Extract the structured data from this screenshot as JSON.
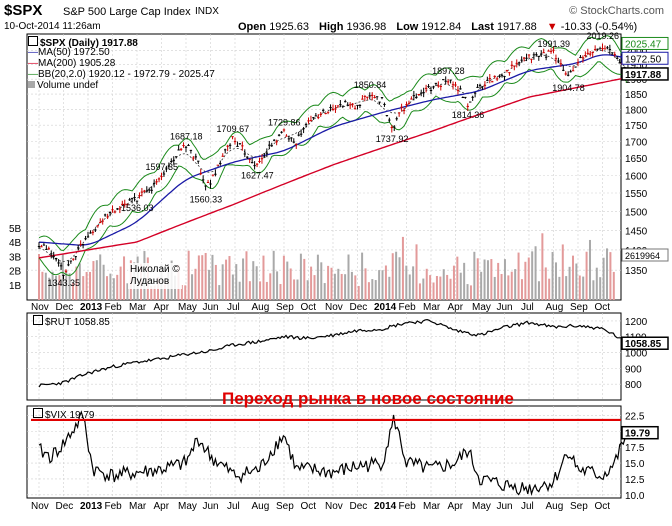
{
  "header": {
    "symbol": "$SPX",
    "description": "S&P 500 Large Cap Index",
    "exchange": "INDX",
    "copyright": "© StockCharts.com",
    "datetime": "10-Oct-2014 11:26am",
    "open_label": "Open",
    "open_value": "1925.63",
    "high_label": "High",
    "high_value": "1936.98",
    "low_label": "Low",
    "low_value": "1912.84",
    "last_label": "Last",
    "last_value": "1917.88",
    "change": "-10.33 (-0.54%)",
    "change_arrow": "▼"
  },
  "legend": {
    "price": "$SPX (Daily) 1917.88",
    "ma50": "MA(50) 1972.50",
    "ma200": "MA(200) 1905.28",
    "bb": "BB(20,2.0) 1920.12 - 1972.79 - 2025.47",
    "volume": "Volume undef",
    "rut": "$RUT 1058.85",
    "vix": "$VIX 19.79"
  },
  "credit": {
    "line1": "Николай ©",
    "line2": "Луданов"
  },
  "annotation": {
    "text": "Переход рынка в новое состояние"
  },
  "colors": {
    "price_up": "#000000",
    "price_down": "#cc0000",
    "ma50": "#1a1aa6",
    "ma200": "#d40026",
    "bb": "#1b8a1b",
    "volume_up": "#a9a9a9",
    "volume_down": "#e39a9a",
    "grid": "#d0d0d0",
    "annotation": "#e00000"
  },
  "chart_data": [
    {
      "type": "line",
      "name": "price",
      "title": "$SPX (Daily) 1917.88",
      "ylim": [
        1280,
        2060
      ],
      "log_scale": true,
      "y_ticks": [
        1350,
        1400,
        1450,
        1500,
        1550,
        1600,
        1650,
        1700,
        1750,
        1800,
        1850,
        1900,
        1950,
        2000
      ],
      "y2_tick_labels": [
        "1B",
        "2B",
        "3B",
        "4B",
        "5B"
      ],
      "x_labels": [
        "Nov",
        "Dec",
        "2013",
        "Feb",
        "Mar",
        "Apr",
        "May",
        "Jun",
        "Jul",
        "Aug",
        "Sep",
        "Oct",
        "Nov",
        "Dec",
        "2014",
        "Feb",
        "Mar",
        "Apr",
        "May",
        "Jun",
        "Jul",
        "Aug",
        "Sep",
        "Oct"
      ],
      "x_bold": [
        "2013",
        "2014"
      ],
      "points": [
        [
          0,
          1410
        ],
        [
          0.5,
          1395
        ],
        [
          1,
          1343.35
        ],
        [
          1.4,
          1380
        ],
        [
          1.8,
          1420
        ],
        [
          2,
          1440
        ],
        [
          2.5,
          1470
        ],
        [
          3,
          1500
        ],
        [
          3.5,
          1515
        ],
        [
          4,
          1536.03
        ],
        [
          4.5,
          1555
        ],
        [
          5,
          1597.35
        ],
        [
          5.5,
          1650
        ],
        [
          6,
          1687.18
        ],
        [
          6.5,
          1640
        ],
        [
          6.8,
          1560.33
        ],
        [
          7.3,
          1620
        ],
        [
          7.9,
          1709.67
        ],
        [
          8.5,
          1660
        ],
        [
          8.9,
          1627.47
        ],
        [
          9.5,
          1690
        ],
        [
          10,
          1729.86
        ],
        [
          10.5,
          1700
        ],
        [
          11,
          1760
        ],
        [
          11.5,
          1790
        ],
        [
          12,
          1800
        ],
        [
          12.5,
          1820
        ],
        [
          13,
          1805
        ],
        [
          13.5,
          1850.84
        ],
        [
          14,
          1830
        ],
        [
          14.4,
          1737.92
        ],
        [
          14.8,
          1800
        ],
        [
          15.5,
          1850
        ],
        [
          16.2,
          1880
        ],
        [
          16.7,
          1897.28
        ],
        [
          17.2,
          1860
        ],
        [
          17.5,
          1814.36
        ],
        [
          18,
          1880
        ],
        [
          18.5,
          1900
        ],
        [
          19,
          1920
        ],
        [
          19.5,
          1950
        ],
        [
          20,
          1975
        ],
        [
          20.5,
          1985
        ],
        [
          21,
          1991.39
        ],
        [
          21.3,
          1950
        ],
        [
          21.6,
          1904.78
        ],
        [
          22,
          1960
        ],
        [
          22.5,
          1990
        ],
        [
          23,
          2019.26
        ],
        [
          23.4,
          1990
        ],
        [
          23.7,
          1965
        ],
        [
          24,
          1917.88
        ]
      ],
      "ma50": [
        [
          0,
          1420
        ],
        [
          2,
          1410
        ],
        [
          4,
          1470
        ],
        [
          6,
          1590
        ],
        [
          8,
          1640
        ],
        [
          10,
          1670
        ],
        [
          12,
          1745
        ],
        [
          14,
          1790
        ],
        [
          16,
          1830
        ],
        [
          18,
          1860
        ],
        [
          20,
          1930
        ],
        [
          22,
          1955
        ],
        [
          23,
          1990
        ],
        [
          24,
          1972.5
        ]
      ],
      "ma200": [
        [
          0,
          1380
        ],
        [
          4,
          1420
        ],
        [
          8,
          1520
        ],
        [
          12,
          1630
        ],
        [
          16,
          1730
        ],
        [
          20,
          1840
        ],
        [
          24,
          1905.28
        ]
      ],
      "bb_upper_value": 2025.47,
      "bb_mid_value": 1972.79,
      "bb_lower_value": 1920.12,
      "annotations": [
        {
          "x": 1,
          "y": 1343.35,
          "label": "1343.35"
        },
        {
          "x": 4,
          "y": 1536.03,
          "label": "1536.03"
        },
        {
          "x": 5,
          "y": 1597.35,
          "label": "1597.35"
        },
        {
          "x": 6,
          "y": 1687.18,
          "label": "1687.18"
        },
        {
          "x": 6.8,
          "y": 1560.33,
          "label": "1560.33"
        },
        {
          "x": 7.9,
          "y": 1709.67,
          "label": "1709.67"
        },
        {
          "x": 8.9,
          "y": 1627.47,
          "label": "1627.47"
        },
        {
          "x": 10,
          "y": 1729.86,
          "label": "1729.86"
        },
        {
          "x": 13.5,
          "y": 1850.84,
          "label": "1850.84"
        },
        {
          "x": 14.4,
          "y": 1737.92,
          "label": "1737.92"
        },
        {
          "x": 16.7,
          "y": 1897.28,
          "label": "1897.28"
        },
        {
          "x": 17.5,
          "y": 1814.36,
          "label": "1814.36"
        },
        {
          "x": 21,
          "y": 1991.39,
          "label": "1991.39"
        },
        {
          "x": 21.6,
          "y": 1904.78,
          "label": "1904.78"
        },
        {
          "x": 23,
          "y": 2019.26,
          "label": "2019.26"
        }
      ],
      "right_tags": [
        {
          "value": 2025.47,
          "label": "2025.47",
          "style": "bb"
        },
        {
          "value": 1972.5,
          "label": "1972.50",
          "style": "ma50"
        },
        {
          "value": 1917.88,
          "label": "1917.88",
          "style": "price"
        }
      ],
      "volume_tag": "2619964",
      "volume_scale_max": 5
    },
    {
      "type": "line",
      "name": "rut",
      "title": "$RUT 1058.85",
      "ylim": [
        700,
        1250
      ],
      "y_ticks": [
        800,
        900,
        1000,
        1100,
        1200
      ],
      "last_tag": "1058.85",
      "points": [
        [
          0,
          790
        ],
        [
          1,
          810
        ],
        [
          2,
          870
        ],
        [
          3,
          910
        ],
        [
          4,
          940
        ],
        [
          5,
          960
        ],
        [
          6,
          990
        ],
        [
          7,
          1010
        ],
        [
          8,
          1050
        ],
        [
          9,
          1070
        ],
        [
          10,
          1100
        ],
        [
          11,
          1090
        ],
        [
          12,
          1110
        ],
        [
          13,
          1140
        ],
        [
          14,
          1150
        ],
        [
          15,
          1190
        ],
        [
          16,
          1200
        ],
        [
          17,
          1140
        ],
        [
          18,
          1110
        ],
        [
          19,
          1160
        ],
        [
          20,
          1190
        ],
        [
          21,
          1160
        ],
        [
          22,
          1170
        ],
        [
          23,
          1150
        ],
        [
          23.5,
          1110
        ],
        [
          24,
          1058.85
        ]
      ]
    },
    {
      "type": "line",
      "name": "vix",
      "title": "$VIX 19.79",
      "ylim": [
        9.5,
        24
      ],
      "y_ticks": [
        10.0,
        12.5,
        15.0,
        17.5,
        20.0,
        22.5
      ],
      "last_tag": "19.79",
      "threshold": 21.8,
      "points": [
        [
          0,
          17
        ],
        [
          0.5,
          16
        ],
        [
          1,
          18
        ],
        [
          1.8,
          22.5
        ],
        [
          2.2,
          14
        ],
        [
          3,
          13
        ],
        [
          4,
          13.5
        ],
        [
          5,
          14
        ],
        [
          6,
          15
        ],
        [
          6.5,
          19
        ],
        [
          7,
          16
        ],
        [
          8,
          13
        ],
        [
          9,
          14
        ],
        [
          9.5,
          17
        ],
        [
          10,
          19.5
        ],
        [
          10.5,
          14
        ],
        [
          11,
          14
        ],
        [
          12,
          13.5
        ],
        [
          13,
          14.5
        ],
        [
          14,
          15
        ],
        [
          14.5,
          22
        ],
        [
          15,
          15
        ],
        [
          16,
          14
        ],
        [
          17,
          15
        ],
        [
          17.5,
          17
        ],
        [
          18,
          12.5
        ],
        [
          19,
          11.5
        ],
        [
          20,
          11
        ],
        [
          21,
          12
        ],
        [
          21.6,
          17
        ],
        [
          22,
          14
        ],
        [
          23,
          13
        ],
        [
          23.5,
          15
        ],
        [
          24,
          19.79
        ]
      ]
    }
  ]
}
